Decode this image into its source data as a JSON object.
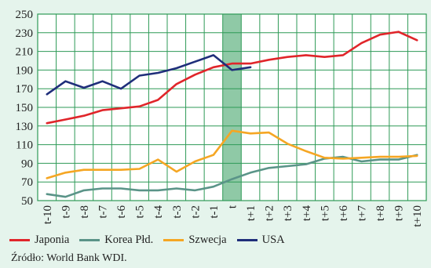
{
  "chart_data": {
    "type": "line",
    "title": "",
    "xlabel": "",
    "ylabel": "",
    "categories": [
      "t-10",
      "t-9",
      "t-8",
      "t-7",
      "t-6",
      "t-5",
      "t-4",
      "t-3",
      "t-2",
      "t-1",
      "t",
      "t+1",
      "t+2",
      "t+3",
      "t+4",
      "t+5",
      "t+6",
      "t+7",
      "t+8",
      "t+9",
      "t+10"
    ],
    "ylim": [
      50,
      250
    ],
    "yticks": [
      50,
      70,
      90,
      110,
      130,
      150,
      170,
      190,
      210,
      230,
      250
    ],
    "grid": true,
    "highlight_category": "t",
    "highlight_color": "#8fc9a6",
    "series": [
      {
        "name": "Japonia",
        "color": "#e0252a",
        "values": [
          133,
          137,
          141,
          147,
          149,
          151,
          158,
          175,
          185,
          193,
          197,
          197,
          201,
          204,
          206,
          204,
          206,
          219,
          228,
          231,
          222
        ]
      },
      {
        "name": "Korea Płd.",
        "color": "#5a9488",
        "values": [
          57,
          54,
          61,
          63,
          63,
          61,
          61,
          63,
          61,
          65,
          73,
          80,
          85,
          87,
          89,
          95,
          97,
          92,
          94,
          94,
          99
        ]
      },
      {
        "name": "Szwecja",
        "color": "#f5a623",
        "values": [
          74,
          80,
          83,
          83,
          83,
          84,
          94,
          81,
          92,
          99,
          125,
          122,
          123,
          111,
          103,
          96,
          95,
          96,
          97,
          97,
          98
        ]
      },
      {
        "name": "USA",
        "color": "#1f2e7a",
        "values": [
          164,
          178,
          171,
          178,
          170,
          184,
          187,
          192,
          199,
          206,
          190,
          193,
          null,
          null,
          null,
          null,
          null,
          null,
          null,
          null,
          null
        ]
      }
    ],
    "legend_position": "bottom"
  },
  "source_text": "Źródło: World Bank WDI."
}
